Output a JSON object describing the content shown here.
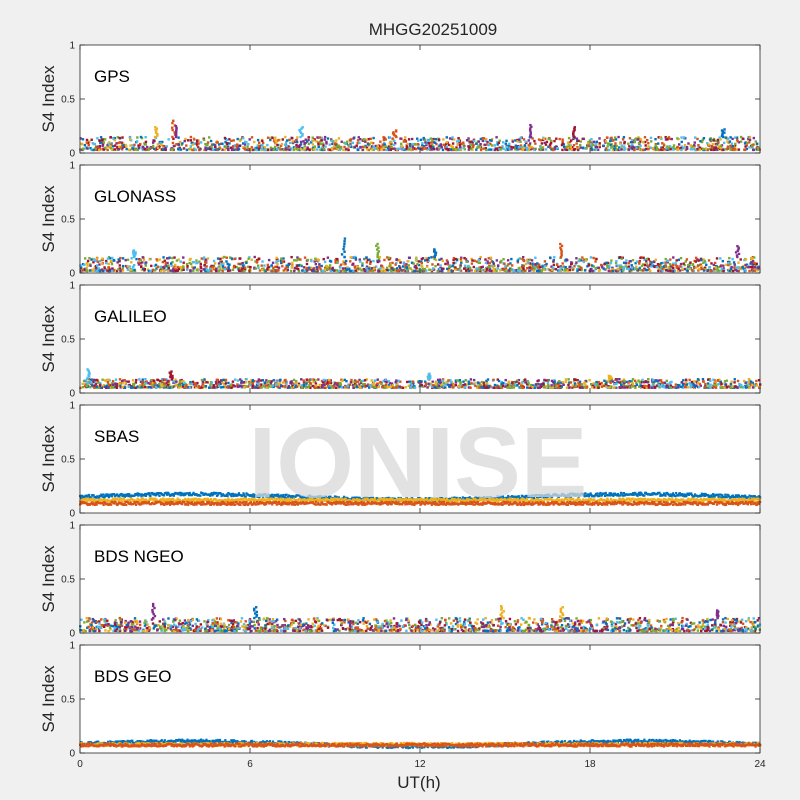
{
  "figure": {
    "title": "MHGG20251009",
    "watermark": "IONISE",
    "xlabel": "UT(h)",
    "x_ticks": [
      "0",
      "6",
      "12",
      "18",
      "24"
    ],
    "background": "#f0f0f0",
    "axes_background": "#ffffff"
  },
  "chart_data": [
    {
      "type": "scatter",
      "panel": "GPS",
      "title": "GPS",
      "ylabel": "S4 Index",
      "xlim": [
        0,
        24
      ],
      "ylim": [
        0,
        1
      ],
      "y_ticks": [
        "0",
        "0.5",
        "1"
      ],
      "series_colors": [
        "#0072BD",
        "#D95319",
        "#EDB120",
        "#7E2F8E",
        "#77AC30",
        "#4DBEEE",
        "#A2142F"
      ],
      "typical_range": [
        0.03,
        0.15
      ],
      "spikes": [
        [
          2.7,
          0.24
        ],
        [
          3.3,
          0.3
        ],
        [
          3.4,
          0.25
        ],
        [
          7.8,
          0.24
        ],
        [
          11.1,
          0.21
        ],
        [
          15.9,
          0.26
        ],
        [
          17.4,
          0.24
        ],
        [
          22.7,
          0.22
        ]
      ]
    },
    {
      "type": "scatter",
      "panel": "GLONASS",
      "title": "GLONASS",
      "ylabel": "S4 Index",
      "xlim": [
        0,
        24
      ],
      "ylim": [
        0,
        1
      ],
      "y_ticks": [
        "0",
        "0.5",
        "1"
      ],
      "series_colors": [
        "#0072BD",
        "#D95319",
        "#EDB120",
        "#7E2F8E",
        "#77AC30",
        "#4DBEEE",
        "#A2142F"
      ],
      "typical_range": [
        0.02,
        0.15
      ],
      "spikes": [
        [
          1.9,
          0.21
        ],
        [
          9.3,
          0.32
        ],
        [
          10.5,
          0.27
        ],
        [
          12.5,
          0.22
        ],
        [
          17.0,
          0.27
        ],
        [
          23.2,
          0.25
        ]
      ]
    },
    {
      "type": "scatter",
      "panel": "GALILEO",
      "title": "GALILEO",
      "ylabel": "S4 Index",
      "xlim": [
        0,
        24
      ],
      "ylim": [
        0,
        1
      ],
      "y_ticks": [
        "0",
        "0.5",
        "1"
      ],
      "series_colors": [
        "#0072BD",
        "#D95319",
        "#EDB120",
        "#7E2F8E",
        "#77AC30",
        "#4DBEEE",
        "#A2142F"
      ],
      "typical_range": [
        0.05,
        0.13
      ],
      "spikes": [
        [
          0.3,
          0.22
        ],
        [
          3.2,
          0.2
        ],
        [
          12.3,
          0.18
        ],
        [
          18.7,
          0.16
        ]
      ]
    },
    {
      "type": "scatter",
      "panel": "SBAS",
      "title": "SBAS",
      "ylabel": "S4 Index",
      "xlim": [
        0,
        24
      ],
      "ylim": [
        0,
        1
      ],
      "y_ticks": [
        "0",
        "0.5",
        "1"
      ],
      "series_colors": [
        "#0072BD",
        "#EDB120",
        "#D95319"
      ],
      "series_levels": [
        0.15,
        0.12,
        0.09
      ]
    },
    {
      "type": "scatter",
      "panel": "BDS NGEO",
      "title": "BDS NGEO",
      "ylabel": "S4 Index",
      "xlim": [
        0,
        24
      ],
      "ylim": [
        0,
        1
      ],
      "y_ticks": [
        "0",
        "0.5",
        "1"
      ],
      "series_colors": [
        "#0072BD",
        "#D95319",
        "#EDB120",
        "#7E2F8E",
        "#77AC30",
        "#4DBEEE",
        "#A2142F"
      ],
      "typical_range": [
        0.02,
        0.14
      ],
      "spikes": [
        [
          2.6,
          0.27
        ],
        [
          6.2,
          0.24
        ],
        [
          14.9,
          0.25
        ],
        [
          17.0,
          0.24
        ],
        [
          22.5,
          0.21
        ]
      ]
    },
    {
      "type": "scatter",
      "panel": "BDS GEO",
      "title": "BDS GEO",
      "ylabel": "S4 Index",
      "xlim": [
        0,
        24
      ],
      "ylim": [
        0,
        1
      ],
      "y_ticks": [
        "0",
        "0.5",
        "1"
      ],
      "series_colors": [
        "#0072BD",
        "#EDB120",
        "#D95319"
      ],
      "series_levels": [
        0.085,
        0.08,
        0.075
      ]
    }
  ]
}
